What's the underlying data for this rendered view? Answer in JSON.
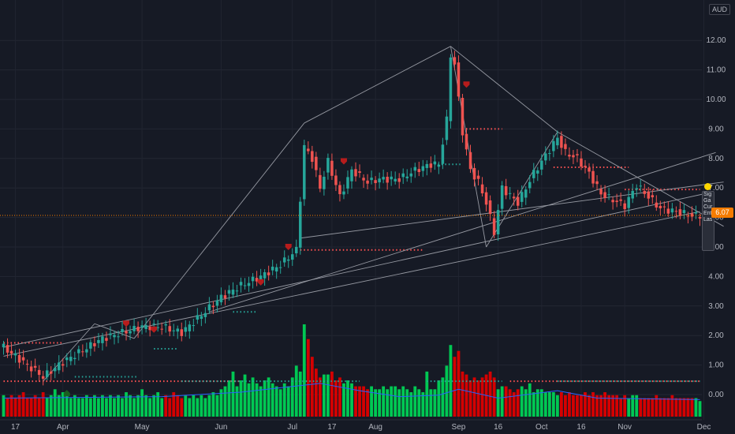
{
  "currency": "AUD",
  "last_price": "6.07",
  "side_panel": [
    "Sig",
    "Ga",
    "Cur",
    "Ent",
    "Las"
  ],
  "colors": {
    "background": "#161a25",
    "up": "#26a69a",
    "down": "#ef5350",
    "volume_up": "#00c853",
    "volume_down": "#d50000",
    "price_line": "#f57c00",
    "trendline": "#9598a1",
    "dots": "#ff5252"
  },
  "chart_data": {
    "type": "candlestick",
    "title": "",
    "ylim": [
      -0.7,
      12.3
    ],
    "y_ticks": [
      "12.00",
      "11.00",
      "10.00",
      "9.00",
      "8.00",
      "7.00",
      "6.00",
      "5.00",
      "4.00",
      "3.00",
      "2.00",
      "1.00",
      "0.00"
    ],
    "y_tick_values": [
      12,
      11,
      10,
      9,
      8,
      7,
      6,
      5,
      4,
      3,
      2,
      1,
      0
    ],
    "x_labels": [
      {
        "label": "17",
        "i": 3
      },
      {
        "label": "Apr",
        "i": 15
      },
      {
        "label": "May",
        "i": 35
      },
      {
        "label": "Jun",
        "i": 55
      },
      {
        "label": "Jul",
        "i": 73
      },
      {
        "label": "17",
        "i": 83
      },
      {
        "label": "Aug",
        "i": 94
      },
      {
        "label": "Sep",
        "i": 115
      },
      {
        "label": "16",
        "i": 125
      },
      {
        "label": "Oct",
        "i": 136
      },
      {
        "label": "16",
        "i": 146
      },
      {
        "label": "Nov",
        "i": 157
      },
      {
        "label": "Dec",
        "i": 177
      }
    ],
    "close_anchors": [
      [
        0,
        1.6
      ],
      [
        5,
        1.1
      ],
      [
        10,
        0.6
      ],
      [
        15,
        1.1
      ],
      [
        20,
        1.5
      ],
      [
        25,
        1.9
      ],
      [
        30,
        2.1
      ],
      [
        35,
        2.3
      ],
      [
        40,
        2.3
      ],
      [
        45,
        2.1
      ],
      [
        50,
        2.7
      ],
      [
        55,
        3.3
      ],
      [
        60,
        3.7
      ],
      [
        65,
        4.0
      ],
      [
        70,
        4.4
      ],
      [
        74,
        4.9
      ],
      [
        76,
        8.4
      ],
      [
        78,
        8.0
      ],
      [
        80,
        7.0
      ],
      [
        82,
        7.9
      ],
      [
        85,
        6.7
      ],
      [
        88,
        7.6
      ],
      [
        92,
        7.2
      ],
      [
        95,
        7.3
      ],
      [
        100,
        7.3
      ],
      [
        104,
        7.6
      ],
      [
        108,
        7.8
      ],
      [
        110,
        7.8
      ],
      [
        112,
        9.3
      ],
      [
        113,
        11.5
      ],
      [
        114,
        11.2
      ],
      [
        115,
        10.0
      ],
      [
        116,
        8.9
      ],
      [
        118,
        7.6
      ],
      [
        120,
        7.2
      ],
      [
        122,
        6.5
      ],
      [
        124,
        5.5
      ],
      [
        126,
        7.0
      ],
      [
        130,
        6.5
      ],
      [
        134,
        7.5
      ],
      [
        138,
        8.3
      ],
      [
        140,
        8.7
      ],
      [
        142,
        8.2
      ],
      [
        145,
        8.0
      ],
      [
        148,
        7.5
      ],
      [
        151,
        6.8
      ],
      [
        154,
        6.6
      ],
      [
        157,
        6.4
      ],
      [
        160,
        7.1
      ],
      [
        163,
        6.7
      ],
      [
        166,
        6.3
      ],
      [
        170,
        6.2
      ],
      [
        174,
        6.07
      ]
    ],
    "volume": [
      0.3,
      0.2,
      0.3,
      0.2,
      0.3,
      0.4,
      0.2,
      0.2,
      0.3,
      0.2,
      0.4,
      0.2,
      0.3,
      0.5,
      0.3,
      0.4,
      0.3,
      0.2,
      0.3,
      0.2,
      0.2,
      0.3,
      0.2,
      0.3,
      0.2,
      0.3,
      0.2,
      0.3,
      0.2,
      0.3,
      0.2,
      0.4,
      0.3,
      0.2,
      0.3,
      0.5,
      0.3,
      0.2,
      0.3,
      0.4,
      0.2,
      0.3,
      0.2,
      0.4,
      0.3,
      0.2,
      0.3,
      0.2,
      0.3,
      0.2,
      0.3,
      0.2,
      0.3,
      0.4,
      0.3,
      0.5,
      0.6,
      0.8,
      1.1,
      0.6,
      0.8,
      1.0,
      0.7,
      0.9,
      0.7,
      0.6,
      0.8,
      0.9,
      0.7,
      0.6,
      0.5,
      0.7,
      0.6,
      0.9,
      1.3,
      1.1,
      2.7,
      2.2,
      1.6,
      1.2,
      0.9,
      1.0,
      1.0,
      1.1,
      0.8,
      0.9,
      0.7,
      0.8,
      0.7,
      0.6,
      0.6,
      0.6,
      0.5,
      0.6,
      0.5,
      0.5,
      0.6,
      0.5,
      0.6,
      0.6,
      0.5,
      0.6,
      0.5,
      0.4,
      0.6,
      0.5,
      0.4,
      1.1,
      0.5,
      0.5,
      0.8,
      0.9,
      1.3,
      2.0,
      1.6,
      1.8,
      1.1,
      1.0,
      0.8,
      0.9,
      0.8,
      0.9,
      1.0,
      1.1,
      0.9,
      0.5,
      0.6,
      0.6,
      0.5,
      0.4,
      0.5,
      0.6,
      0.5,
      0.7,
      0.4,
      0.5,
      0.5,
      0.4,
      0.4,
      0.4,
      0.3,
      0.4,
      0.3,
      0.4,
      0.3,
      0.3,
      0.3,
      0.4,
      0.3,
      0.4,
      0.3,
      0.3,
      0.4,
      0.3,
      0.3,
      0.3,
      0.2,
      0.3,
      0.2,
      0.3,
      0.3,
      0.2,
      0.2,
      0.2,
      0.2,
      0.3,
      0.2,
      0.2,
      0.2,
      0.3,
      0.2,
      0.2,
      0.2,
      0.2,
      0.2,
      0.2,
      0.1
    ],
    "volume_ma": [
      [
        0,
        0.2
      ],
      [
        40,
        0.25
      ],
      [
        60,
        0.4
      ],
      [
        70,
        0.55
      ],
      [
        80,
        0.7
      ],
      [
        90,
        0.45
      ],
      [
        100,
        0.25
      ],
      [
        110,
        0.3
      ],
      [
        115,
        0.5
      ],
      [
        125,
        0.2
      ],
      [
        140,
        0.45
      ],
      [
        150,
        0.2
      ],
      [
        176,
        0.15
      ]
    ],
    "trendlines": [
      {
        "from": [
          0,
          1.6
        ],
        "to": [
          177,
          6.8
        ]
      },
      {
        "from": [
          0,
          1.3
        ],
        "to": [
          176,
          6.2
        ]
      },
      {
        "from": [
          10,
          0.45
        ],
        "to": [
          23,
          2.4
        ]
      },
      {
        "from": [
          23,
          2.4
        ],
        "to": [
          33,
          1.9
        ]
      },
      {
        "from": [
          52,
          2.8
        ],
        "to": [
          180,
          8.2
        ]
      },
      {
        "from": [
          33,
          1.9
        ],
        "to": [
          76,
          9.2
        ]
      },
      {
        "from": [
          76,
          9.2
        ],
        "to": [
          113,
          11.8
        ]
      },
      {
        "from": [
          113,
          11.8
        ],
        "to": [
          122,
          5.0
        ]
      },
      {
        "from": [
          122,
          5.0
        ],
        "to": [
          140,
          8.9
        ]
      },
      {
        "from": [
          113,
          11.8
        ],
        "to": [
          140,
          8.9
        ]
      },
      {
        "from": [
          140,
          8.9
        ],
        "to": [
          182,
          5.7
        ]
      },
      {
        "from": [
          75,
          5.3
        ],
        "to": [
          182,
          7.2
        ]
      }
    ],
    "red_dot_lines": [
      {
        "y": 1.75,
        "from": 0,
        "to": 15
      },
      {
        "y": 0.45,
        "from": 0,
        "to": 60
      },
      {
        "y": 4.9,
        "from": 75,
        "to": 106
      },
      {
        "y": 9.0,
        "from": 116,
        "to": 126
      },
      {
        "y": 7.7,
        "from": 139,
        "to": 158
      },
      {
        "y": 6.95,
        "from": 157,
        "to": 176
      },
      {
        "y": 0.45,
        "from": 128,
        "to": 176
      }
    ],
    "green_dot_lines": [
      {
        "y": 0.6,
        "from": 18,
        "to": 34
      },
      {
        "y": 1.55,
        "from": 38,
        "to": 44
      },
      {
        "y": 2.8,
        "from": 58,
        "to": 64
      },
      {
        "y": 7.8,
        "from": 108,
        "to": 116
      },
      {
        "y": 0.45,
        "from": 45,
        "to": 90
      },
      {
        "y": 0.45,
        "from": 107,
        "to": 126
      },
      {
        "y": 0.45,
        "from": 140,
        "to": 176
      }
    ],
    "markers_down": [
      [
        31,
        2.4
      ],
      [
        38,
        2.2
      ],
      [
        65,
        3.8
      ],
      [
        72,
        5.0
      ],
      [
        86,
        7.9
      ],
      [
        117,
        10.5
      ]
    ],
    "markers_up": [
      [
        16,
        0.05
      ]
    ],
    "last_price": 6.07
  }
}
